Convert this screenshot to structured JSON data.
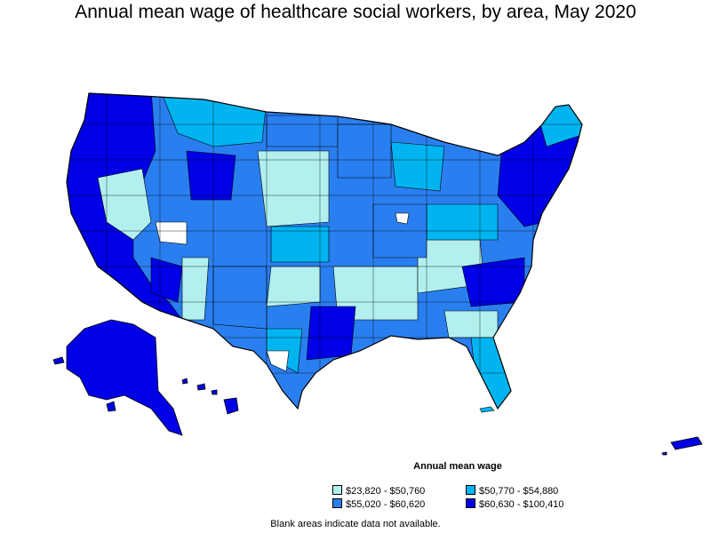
{
  "title": "Annual mean wage of healthcare social workers, by area, May 2020",
  "legend": {
    "title": "Annual mean wage",
    "items": [
      {
        "label": "$23,820 - $50,760",
        "color": "#b2f0f0"
      },
      {
        "label": "$50,770 - $54,880",
        "color": "#00b4f0"
      },
      {
        "label": "$55,020 - $60,620",
        "color": "#2a7ff0"
      },
      {
        "label": "$60,630 - $100,410",
        "color": "#0000e6"
      }
    ]
  },
  "note": "Blank areas indicate data not available."
}
